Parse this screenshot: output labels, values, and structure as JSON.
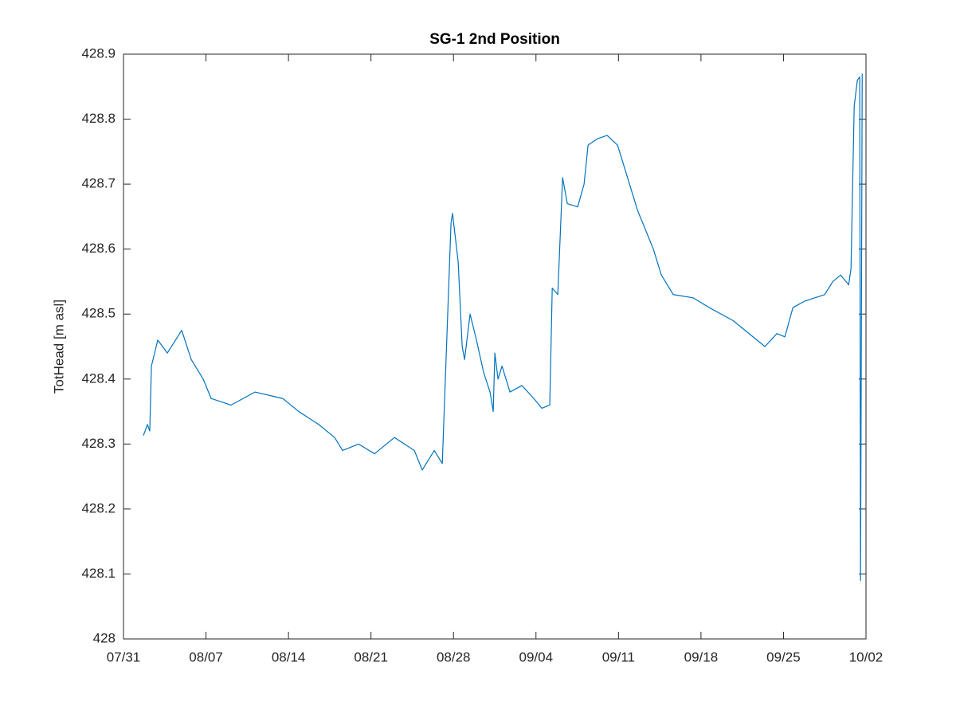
{
  "chart_data": {
    "type": "line",
    "title": "SG-1 2nd Position",
    "y_label": "TotHead [m asl]",
    "xlim": [
      0,
      63
    ],
    "xticks": [
      {
        "value": 0,
        "label": "07/31"
      },
      {
        "value": 7,
        "label": "08/07"
      },
      {
        "value": 14,
        "label": "08/14"
      },
      {
        "value": 21,
        "label": "08/21"
      },
      {
        "value": 28,
        "label": "08/28"
      },
      {
        "value": 35,
        "label": "09/04"
      },
      {
        "value": 42,
        "label": "09/11"
      },
      {
        "value": 49,
        "label": "09/18"
      },
      {
        "value": 56,
        "label": "09/25"
      },
      {
        "value": 63,
        "label": "10/02"
      }
    ],
    "ylim": [
      428,
      428.9
    ],
    "yticks": [
      428,
      428.1,
      428.2,
      428.3,
      428.4,
      428.5,
      428.6,
      428.7,
      428.8,
      428.9
    ],
    "grid": false,
    "x": [
      1.69,
      2.03,
      2.23,
      2.37,
      2.91,
      3.72,
      4.94,
      5.75,
      6.76,
      7.44,
      9.13,
      11.16,
      13.52,
      14.87,
      16.57,
      17.92,
      18.59,
      19.95,
      21.3,
      22.99,
      24.68,
      25.35,
      26.37,
      27.05,
      27.79,
      27.92,
      28.4,
      28.74,
      28.94,
      29.41,
      29.95,
      30.56,
      31.1,
      31.37,
      31.51,
      31.78,
      32.12,
      32.79,
      33.81,
      34.82,
      35.5,
      36.17,
      36.38,
      36.85,
      37.26,
      37.66,
      38.54,
      39.08,
      39.42,
      40.23,
      41.04,
      41.92,
      42.6,
      43.61,
      44.96,
      45.64,
      46.65,
      48.34,
      49.7,
      50.71,
      51.72,
      53.41,
      54.43,
      55.44,
      56.12,
      56.8,
      57.81,
      59.5,
      60.18,
      60.85,
      61.53,
      61.73,
      62.0,
      62.27,
      62.47,
      62.54,
      62.68
    ],
    "series": [
      {
        "name": "TotHead",
        "color": "#0072bd",
        "values": [
          428.313,
          428.33,
          428.32,
          428.42,
          428.46,
          428.44,
          428.475,
          428.43,
          428.4,
          428.37,
          428.36,
          428.38,
          428.37,
          428.35,
          428.33,
          428.31,
          428.29,
          428.3,
          428.285,
          428.31,
          428.29,
          428.26,
          428.29,
          428.27,
          428.64,
          428.655,
          428.58,
          428.45,
          428.43,
          428.5,
          428.46,
          428.41,
          428.38,
          428.35,
          428.44,
          428.4,
          428.42,
          428.38,
          428.39,
          428.37,
          428.355,
          428.36,
          428.54,
          428.53,
          428.71,
          428.67,
          428.665,
          428.7,
          428.76,
          428.77,
          428.775,
          428.76,
          428.72,
          428.66,
          428.6,
          428.56,
          428.53,
          428.525,
          428.51,
          428.5,
          428.49,
          428.465,
          428.45,
          428.47,
          428.465,
          428.51,
          428.52,
          428.53,
          428.55,
          428.56,
          428.545,
          428.57,
          428.82,
          428.86,
          428.865,
          428.09,
          428.87
        ]
      }
    ]
  }
}
